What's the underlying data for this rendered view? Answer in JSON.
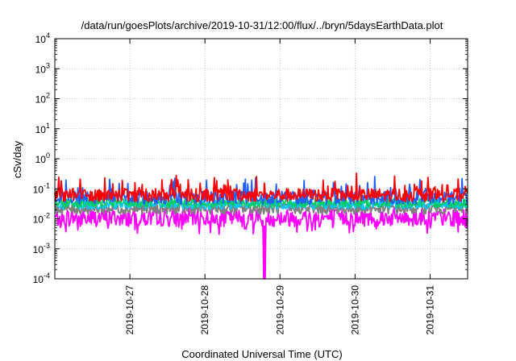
{
  "chart_data": {
    "type": "line",
    "title": "/data/run/goesPlots/archive/2019-10-31/12:00/flux/../bryn/5daysEarthData.plot",
    "xlabel": "Coordinated Universal Time (UTC)",
    "ylabel": "cSv/day",
    "yscale": "log",
    "ylim": [
      0.0001,
      10000
    ],
    "y_ticks": [
      {
        "base": "10",
        "exp": "-4"
      },
      {
        "base": "10",
        "exp": "-3"
      },
      {
        "base": "10",
        "exp": "-2"
      },
      {
        "base": "10",
        "exp": "-1"
      },
      {
        "base": "10",
        "exp": "0"
      },
      {
        "base": "10",
        "exp": "1"
      },
      {
        "base": "10",
        "exp": "2"
      },
      {
        "base": "10",
        "exp": "3"
      },
      {
        "base": "10",
        "exp": "4"
      }
    ],
    "x_type": "date",
    "xlim": [
      "2019-10-26T00:00",
      "2019-10-31T12:00"
    ],
    "x_ticks": [
      "2019-10-27",
      "2019-10-28",
      "2019-10-29",
      "2019-10-30",
      "2019-10-31"
    ],
    "grid": true,
    "series": [
      {
        "color": "#ff0000",
        "base": 0.062,
        "spread": 0.22,
        "spikes": 0.12,
        "values": []
      },
      {
        "color": "#1f5fff",
        "base": 0.05,
        "spread": 0.22,
        "spikes": 0.11,
        "values": []
      },
      {
        "color": "#00cc66",
        "base": 0.034,
        "spread": 0.16,
        "spikes": 0.0,
        "values": []
      },
      {
        "color": "#00c8ff",
        "base": 0.03,
        "spread": 0.16,
        "spikes": 0.0,
        "values": []
      },
      {
        "color": "#808080",
        "base": 0.022,
        "spread": 0.18,
        "spikes": 0.0,
        "values": []
      },
      {
        "color": "#ff00ff",
        "base": 0.011,
        "spread": 0.3,
        "spikes": 0.0,
        "values": []
      }
    ],
    "events": [
      {
        "x": "2019-10-28T19:00",
        "y": 0.0001,
        "color": "#ff00ff",
        "note": "dip"
      }
    ]
  }
}
